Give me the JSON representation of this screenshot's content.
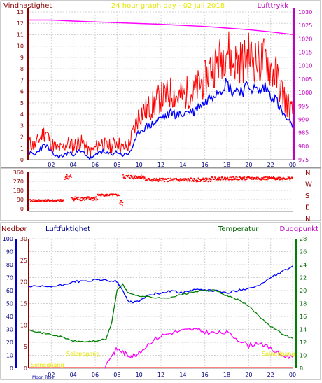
{
  "labels": {
    "title": "24 hour graph day - 02 Juli 2018",
    "left_top": "Vindhastighet",
    "right_top": "Lufttrykk",
    "nedbor": "Nedbør",
    "luftfuktighet": "Luftfuktighet",
    "temperatur": "Temperatur",
    "duggpunkt": "Duggpunkt",
    "solnedgang_left": "Solnedgang",
    "soloppgang": "Soloppgang",
    "solnedgang_right": "Solnedgang",
    "moon": "Moon Rise"
  },
  "colors": {
    "wind_gust": "#ff0000",
    "wind_avg": "#0000ff",
    "pressure": "#ff00ff",
    "winddir": "#ff0000",
    "humidity": "#0000ff",
    "temperature": "#008000",
    "dewpoint": "#ff00ff",
    "rain": "#ff0000",
    "sun_label": "#e6e600",
    "title": "#e6e600",
    "axis_left": "#8b0000",
    "axis_right": "#c000c0"
  },
  "chart_data": [
    {
      "type": "line",
      "name": "wind-pressure",
      "x_ticks": [
        "02",
        "04",
        "06",
        "08",
        "10",
        "12",
        "14",
        "16",
        "18",
        "20",
        "22",
        "00"
      ],
      "y_left_range": [
        0,
        13
      ],
      "y_left_ticks": [
        "0",
        "1",
        "2",
        "3",
        "4",
        "5",
        "6",
        "7",
        "8",
        "9",
        "10",
        "11",
        "12",
        "13"
      ],
      "y_right_range": [
        975,
        1030
      ],
      "y_right_ticks": [
        "975",
        "980",
        "985",
        "990",
        "995",
        "1000",
        "1005",
        "1010",
        "1015",
        "1020",
        "1025",
        "1030"
      ],
      "series": [
        {
          "key": "gust",
          "axis": "left",
          "x": [
            0,
            0.5,
            1,
            1.5,
            2,
            2.5,
            3,
            3.5,
            4,
            4.5,
            5,
            5.5,
            6,
            6.5,
            7,
            7.5,
            8,
            8.5,
            9,
            9.5,
            10,
            10.5,
            11,
            11.5,
            12,
            12.5,
            13,
            13.5,
            14,
            14.5,
            15,
            15.5,
            16,
            16.5,
            17,
            17.5,
            18,
            18.5,
            19,
            19.5,
            20,
            20.5,
            21,
            21.5,
            22,
            22.5,
            23,
            23.5,
            24
          ],
          "y": [
            1.5,
            1.2,
            2,
            2.5,
            1.4,
            1,
            1,
            1.5,
            1.2,
            1.6,
            1.4,
            0.6,
            1,
            1.6,
            1.2,
            1.2,
            1.6,
            1,
            1.2,
            2.5,
            4,
            4.3,
            4.6,
            5,
            5.5,
            5.6,
            6,
            5.5,
            5.6,
            6,
            5.8,
            6.6,
            7,
            8,
            8.4,
            9,
            10,
            8.5,
            8.8,
            8.6,
            9.2,
            8.8,
            8.5,
            9,
            8,
            7.5,
            6,
            5,
            4
          ]
        },
        {
          "key": "avg",
          "axis": "left",
          "x": [
            0,
            0.5,
            1,
            1.5,
            2,
            2.5,
            3,
            3.5,
            4,
            4.5,
            5,
            5.5,
            6,
            6.5,
            7,
            7.5,
            8,
            8.5,
            9,
            9.5,
            10,
            10.5,
            11,
            11.5,
            12,
            12.5,
            13,
            13.5,
            14,
            14.5,
            15,
            15.5,
            16,
            16.5,
            17,
            17.5,
            18,
            18.5,
            19,
            19.5,
            20,
            20.5,
            21,
            21.5,
            22,
            22.5,
            23,
            23.5,
            24
          ],
          "y": [
            0.6,
            0.4,
            1,
            1.3,
            0.6,
            0.3,
            0.3,
            0.6,
            0.5,
            0.7,
            0.6,
            0.1,
            0.3,
            0.8,
            0.5,
            0.5,
            0.7,
            0.4,
            0.5,
            1.2,
            2.5,
            2.8,
            3,
            3.3,
            3.7,
            3.8,
            4.2,
            3.9,
            4,
            4.3,
            4.2,
            4.8,
            5,
            5.6,
            6,
            6.3,
            6.8,
            6,
            6.2,
            6.1,
            6.5,
            6.2,
            6,
            6.4,
            5.7,
            5.3,
            4.2,
            3.5,
            2.8
          ]
        },
        {
          "key": "pressure",
          "axis": "right",
          "x": [
            0,
            2,
            4,
            6,
            8,
            10,
            12,
            14,
            16,
            18,
            20,
            22,
            24
          ],
          "y": [
            1027,
            1027,
            1026.6,
            1026.3,
            1026,
            1025.7,
            1025.4,
            1025,
            1024.6,
            1024,
            1023.4,
            1022.6,
            1021.6
          ]
        }
      ]
    },
    {
      "type": "scatter",
      "name": "wind-direction",
      "y_ticks": [
        "0",
        "90",
        "180",
        "270",
        "360"
      ],
      "dir_ticks": [
        "N",
        "W",
        "S",
        "E",
        "N"
      ],
      "y_range": [
        0,
        360
      ],
      "segments": [
        {
          "from": 0,
          "to": 3.1,
          "y": 85,
          "spread": 12
        },
        {
          "from": 3.2,
          "to": 3.8,
          "y": 320,
          "spread": 25
        },
        {
          "from": 3.8,
          "to": 6.2,
          "y": 105,
          "spread": 20
        },
        {
          "from": 6.2,
          "to": 8.2,
          "y": 140,
          "spread": 10
        },
        {
          "from": 8.2,
          "to": 8.5,
          "y": 60,
          "spread": 30
        },
        {
          "from": 8.5,
          "to": 10.5,
          "y": 320,
          "spread": 20
        },
        {
          "from": 10.5,
          "to": 16.5,
          "y": 290,
          "spread": 18
        },
        {
          "from": 16.5,
          "to": 24,
          "y": 305,
          "spread": 15
        }
      ]
    },
    {
      "type": "line",
      "name": "humidity-temperature",
      "x_ticks": [
        "02",
        "04",
        "06",
        "08",
        "10",
        "12",
        "14",
        "16",
        "18",
        "20",
        "22",
        "00"
      ],
      "y_left_ticks": [
        "0",
        "10",
        "20",
        "30",
        "40",
        "50",
        "60",
        "70",
        "80",
        "90",
        "100"
      ],
      "y_rain_ticks": [
        "0",
        "5",
        "10",
        "15",
        "20",
        "25",
        "30"
      ],
      "y_right_ticks": [
        "8",
        "10",
        "12",
        "14",
        "16",
        "18",
        "20",
        "22",
        "24",
        "26",
        "28"
      ],
      "y_right_range": [
        8,
        28
      ],
      "series": [
        {
          "key": "humidity",
          "axis": "left",
          "x": [
            0,
            1,
            2,
            3,
            4,
            5,
            6,
            7,
            8,
            8.5,
            9,
            9.5,
            10,
            11,
            12,
            13,
            14,
            15,
            16,
            17,
            18,
            19,
            20,
            21,
            22,
            23,
            24
          ],
          "y": [
            63,
            63,
            63,
            64,
            67,
            67,
            68,
            68,
            67,
            60,
            52,
            51,
            52,
            57,
            58,
            60,
            58,
            61,
            60,
            60,
            58,
            60,
            62,
            64,
            70,
            74,
            79
          ]
        },
        {
          "key": "temperature",
          "axis": "right",
          "x": [
            0,
            1,
            2,
            3,
            4,
            5,
            6,
            7,
            7.5,
            8,
            8.5,
            9,
            10,
            11,
            12,
            13,
            14,
            15,
            16,
            17,
            18,
            19,
            20,
            21,
            22,
            23,
            24
          ],
          "y": [
            14,
            13.5,
            13.2,
            12.8,
            12.2,
            12.1,
            12.2,
            12.5,
            15,
            20,
            21,
            19.6,
            19.2,
            19,
            18.8,
            19,
            19.4,
            19.8,
            20,
            20,
            19.2,
            18.6,
            17.6,
            16,
            14.5,
            13.4,
            12.6
          ]
        },
        {
          "key": "dewpoint",
          "axis": "right",
          "x": [
            6.8,
            7.5,
            8,
            8.5,
            9,
            9.5,
            10,
            11,
            12,
            13,
            14,
            15,
            16,
            17,
            18,
            19,
            20,
            21,
            22,
            23,
            24
          ],
          "y": [
            8,
            10,
            11,
            10.5,
            10,
            10,
            10.3,
            12,
            13,
            13.5,
            13.8,
            14,
            13.6,
            13.4,
            13.5,
            12.5,
            11.5,
            12,
            11,
            10,
            9.7
          ]
        }
      ]
    }
  ]
}
